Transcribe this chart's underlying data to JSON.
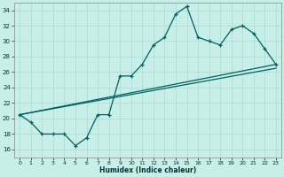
{
  "xlabel": "Humidex (Indice chaleur)",
  "background_color": "#c8eee8",
  "grid_color": "#b0ddd8",
  "line_color": "#006060",
  "xlim": [
    -0.5,
    23.5
  ],
  "ylim": [
    15.0,
    35.0
  ],
  "yticks": [
    16,
    18,
    20,
    22,
    24,
    26,
    28,
    30,
    32,
    34
  ],
  "xticks": [
    0,
    1,
    2,
    3,
    4,
    5,
    6,
    7,
    8,
    9,
    10,
    11,
    12,
    13,
    14,
    15,
    16,
    17,
    18,
    19,
    20,
    21,
    22,
    23
  ],
  "xtick_labels": [
    "0",
    "1",
    "2",
    "3",
    "4",
    "5",
    "6",
    "7",
    "8",
    "9",
    "10",
    "11",
    "12",
    "13",
    "14",
    "15",
    "16",
    "17",
    "18",
    "19",
    "20",
    "21",
    "22",
    "23"
  ],
  "series_main_x": [
    0,
    1,
    2,
    3,
    4,
    5,
    6,
    7,
    8,
    9,
    10,
    11,
    12,
    13,
    14,
    15,
    16,
    17,
    18,
    19,
    20,
    21,
    22,
    23
  ],
  "series_main_y": [
    20.5,
    19.5,
    18.0,
    18.0,
    18.0,
    16.5,
    17.5,
    20.5,
    20.5,
    25.5,
    25.5,
    27.0,
    29.5,
    30.5,
    33.5,
    34.5,
    30.5,
    30.0,
    29.5,
    31.5,
    32.0,
    31.0,
    29.0,
    27.0
  ],
  "series_line1_x": [
    0,
    23
  ],
  "series_line1_y": [
    20.5,
    27.0
  ],
  "series_line2_x": [
    0,
    23
  ],
  "series_line2_y": [
    20.5,
    26.5
  ]
}
